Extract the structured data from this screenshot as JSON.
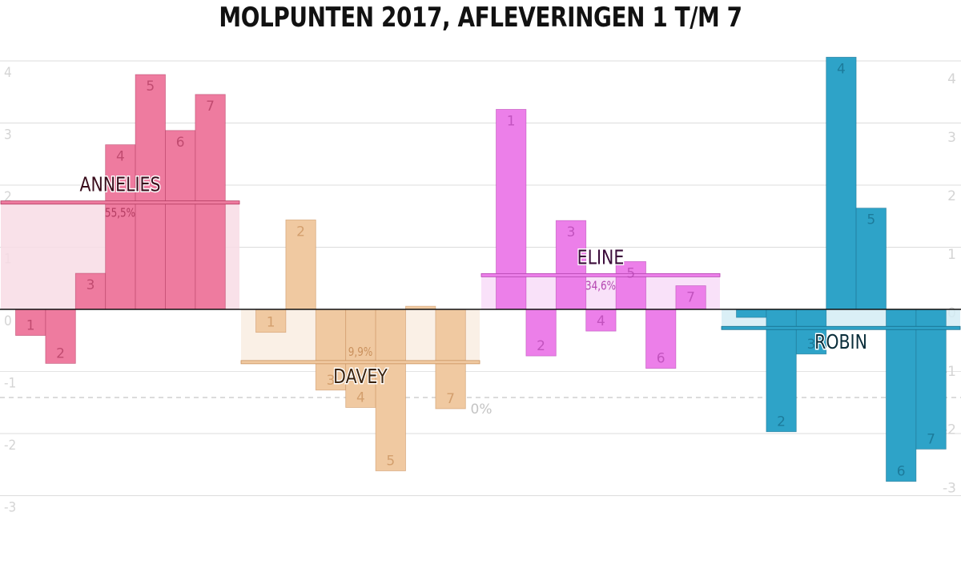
{
  "chart_data": {
    "type": "bar",
    "title": "MOLPUNTEN 2017, AFLEVERINGEN 1 T/M 7",
    "episodes": [
      "1",
      "2",
      "3",
      "4",
      "5",
      "6",
      "7"
    ],
    "left_axis": {
      "ticks": [
        "4",
        "3",
        "2",
        "1",
        "0",
        "-1",
        "-2",
        "-3"
      ],
      "ylim": [
        -3,
        4
      ]
    },
    "right_axis": {
      "ticks": [
        "4",
        "3",
        "2",
        "1",
        "0",
        "-1",
        "-2",
        "-3"
      ],
      "ylim": [
        -3.1,
        4.3
      ]
    },
    "grid": true,
    "threshold": {
      "label": "0%",
      "value": -1.42
    },
    "series": [
      {
        "name": "ANNELIES",
        "pct": "55,5%",
        "avg": 1.72,
        "color": "#ee7b9f",
        "light": "#f8dce5",
        "dark": "#b23b60",
        "label_color": "#3a0d1c",
        "values": [
          -0.42,
          -0.87,
          0.58,
          2.65,
          3.78,
          2.88,
          3.46
        ]
      },
      {
        "name": "DAVEY",
        "pct": "9,9%",
        "avg": -0.85,
        "color": "#f0c9a1",
        "light": "#f9ede2",
        "dark": "#c9905c",
        "label_color": "#3b2410",
        "values": [
          -0.37,
          1.44,
          -1.3,
          -1.58,
          -2.6,
          0.05,
          -1.6
        ]
      },
      {
        "name": "ELINE",
        "pct": "34,6%",
        "avg": 0.55,
        "color": "#ec7fe9",
        "light": "#f8dcf8",
        "dark": "#b444b0",
        "label_color": "#3b0c3a",
        "values": [
          3.22,
          -0.75,
          1.43,
          -0.35,
          0.77,
          -0.95,
          0.38
        ]
      },
      {
        "name": "ROBIN",
        "pct": "",
        "avg": -0.3,
        "color": "#2ea3c8",
        "light": "#d3ecf4",
        "dark": "#176d8c",
        "label_color": "#0a2d3a",
        "values": [
          -0.13,
          -1.97,
          -0.72,
          4.06,
          1.63,
          -2.77,
          -2.25
        ]
      }
    ]
  }
}
